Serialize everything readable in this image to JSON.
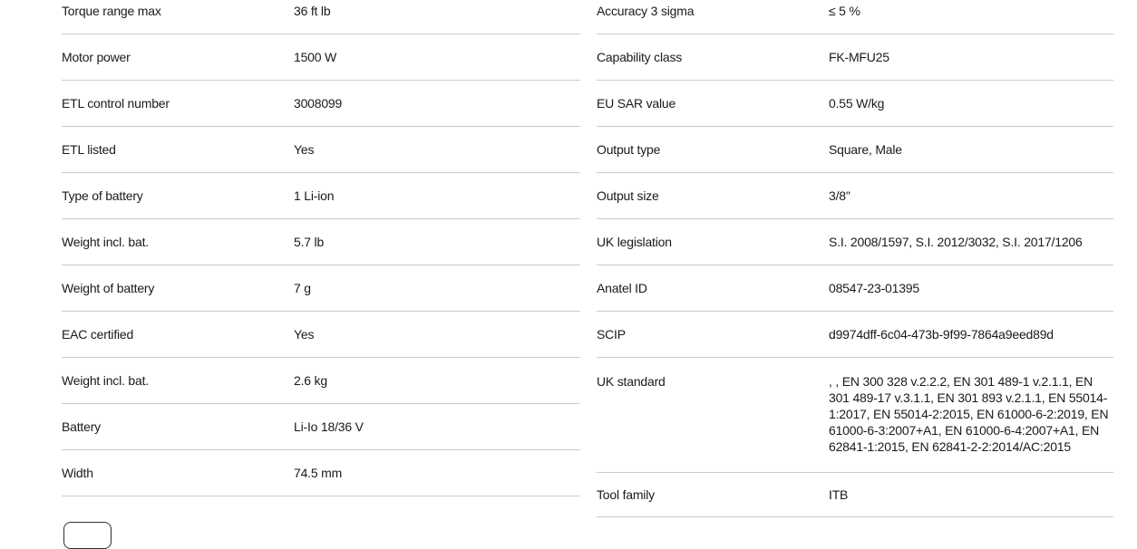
{
  "colors": {
    "background": "#ffffff",
    "text": "#1a1a1a",
    "divider": "#cbcbcb",
    "button_border": "#2f2f2f"
  },
  "spec_table": {
    "left": {
      "rows": [
        {
          "label": "Torque range max",
          "value": "36 ft lb"
        },
        {
          "label": "Motor power",
          "value": "1500 W"
        },
        {
          "label": "ETL control number",
          "value": "3008099"
        },
        {
          "label": "ETL listed",
          "value": "Yes"
        },
        {
          "label": "Type of battery",
          "value": "1 Li-ion"
        },
        {
          "label": "Weight incl. bat.",
          "value": "5.7 lb"
        },
        {
          "label": "Weight of battery",
          "value": "7 g"
        },
        {
          "label": "EAC certified",
          "value": "Yes"
        },
        {
          "label": "Weight incl. bat.",
          "value": "2.6 kg"
        },
        {
          "label": "Battery",
          "value": "Li-Io 18/36 V"
        },
        {
          "label": "Width",
          "value": "74.5 mm"
        }
      ]
    },
    "right": {
      "rows": [
        {
          "label": "Accuracy 3 sigma",
          "value": "≤ 5 %"
        },
        {
          "label": "Capability class",
          "value": "FK-MFU25"
        },
        {
          "label": "EU SAR value",
          "value": "0.55 W/kg"
        },
        {
          "label": "Output type",
          "value": "Square, Male"
        },
        {
          "label": "Output size",
          "value": "3/8\""
        },
        {
          "label": "UK legislation",
          "value": "S.I. 2008/1597, S.I. 2012/3032, S.I. 2017/1206"
        },
        {
          "label": "Anatel ID",
          "value": "08547-23-01395"
        },
        {
          "label": "SCIP",
          "value": "d9974dff-6c04-473b-9f99-7864a9eed89d"
        },
        {
          "label": "UK standard",
          "value": ", , EN 300 328 v.2.2.2, EN 301 489-1 v.2.1.1, EN 301 489-17 v.3.1.1, EN 301 893 v.2.1.1, EN 55014-1:2017, EN 55014-2:2015, EN 61000-6-2:2019, EN 61000-6-3:2007+A1, EN 61000-6-4:2007+A1, EN 62841-1:2015, EN 62841-2-2:2014/AC:2015"
        },
        {
          "label": "Tool family",
          "value": "ITB"
        }
      ]
    }
  },
  "toggle_button": {
    "label": ""
  }
}
